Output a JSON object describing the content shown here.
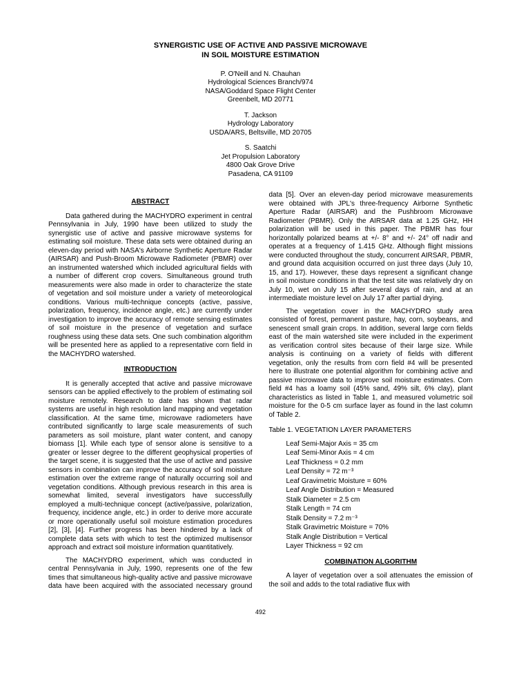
{
  "title_line1": "SYNERGISTIC USE OF ACTIVE AND PASSIVE MICROWAVE",
  "title_line2": "IN SOIL MOISTURE ESTIMATION",
  "author_block1": "P. O'Neill and N. Chauhan\nHydrological Sciences Branch/974\nNASA/Goddard Space Flight Center\nGreenbelt, MD  20771",
  "author_block2": "T. Jackson\nHydrology Laboratory\nUSDA/ARS, Beltsville, MD  20705",
  "author_block3": "S. Saatchi\nJet Propulsion Laboratory\n4800 Oak Grove Drive\nPasadena, CA  91109",
  "section_abstract": "ABSTRACT",
  "abstract_p1": "Data gathered during the MACHYDRO experiment in central Pennsylvania in July, 1990 have been utilized to study the synergistic use of active and passive microwave systems for estimating soil moisture. These data sets were obtained during an eleven-day period with NASA's Airborne Synthetic Aperture Radar (AIRSAR) and Push-Broom Microwave Radiometer (PBMR) over an instrumented watershed which included agricultural fields with a number of different crop covers. Simultaneous ground truth measurements were also made in order to characterize the state of vegetation and soil moisture under a variety of meteorological conditions. Various multi-technique concepts (active, passive, polarization, frequency, incidence angle, etc.) are currently under investigation to improve the accuracy of remote sensing estimates of soil moisture in the presence of vegetation and surface roughness using these data sets. One such combination algorithm will be presented here as applied to a representative corn field in the MACHYDRO watershed.",
  "section_intro": "INTRODUCTION",
  "intro_p1": "It is generally accepted that active and passive microwave sensors can be applied effectively to the problem of estimating soil moisture remotely. Research to date has shown that radar systems are useful in high resolution land mapping and vegetation classification. At the same time, microwave radiometers have contributed significantly to large scale measurements of such parameters as soil moisture, plant water content, and canopy biomass [1]. While each type of sensor alone is sensitive to a greater or lesser degree to the different geophysical properties of the target scene, it is suggested that the use of active and passive sensors in combination can improve the accuracy of soil moisture estimation over the extreme range of naturally occurring soil and vegetation conditions. Although previous research in this area is somewhat limited, several investigators have successfully employed a multi-technique concept (active/passive, polarization, frequency, incidence angle, etc.) in order to derive more accurate or more operationally useful soil moisture estimation procedures [2], [3], [4]. Further progress has been hindered by a lack of complete data sets with which to test the optimized multisensor approach and extract soil moisture information quantitatively.",
  "intro_p2": "The MACHYDRO experiment, which was conducted in central Pennsylvania in July, 1990, represents one of the few times that simultaneous high-quality active and passive microwave data have been acquired with the associated necessary ground data [5]. Over an eleven-day period microwave measurements were obtained with JPL's three-frequency Airborne Synthetic Aperture Radar (AIRSAR) and the Pushbroom Microwave Radiometer (PBMR). Only the AIRSAR data at 1.25 GHz, HH polarization will be used in this paper. The PBMR has four horizontally polarized beams at +/- 8° and +/- 24° off nadir and operates at a frequency of 1.415 GHz. Although flight missions were conducted throughout the study, concurrent AIRSAR, PBMR, and ground data acquisition occurred on just three days (July 10, 15, and 17). However, these days represent a significant change in soil moisture conditions in that the test site was relatively dry on July 10, wet on July 15 after several days of rain, and at an intermediate moisture level on July 17 after partial drying.",
  "intro_p3": "The vegetation cover in the MACHYDRO study area consisted of forest, permanent pasture, hay, corn, soybeans, and senescent small grain crops. In addition, several large corn fields east of the main watershed site were included in the experiment as verification control sites because of their large size. While analysis is continuing on a variety of fields with different vegetation, only the results from corn field #4 will be presented here to illustrate one potential algorithm for combining active and passive microwave data to improve soil moisture estimates. Corn field #4 has a loamy soil (45% sand, 49% silt, 6% clay), plant characteristics as listed in Table 1, and measured volumetric soil moisture for the 0-5 cm surface layer as found in the last column of Table 2.",
  "table1_title": "Table 1.      VEGETATION LAYER PARAMETERS",
  "table1": [
    "Leaf Semi-Major Axis = 35 cm",
    "Leaf Semi-Minor Axis = 4 cm",
    "Leaf Thickness = 0.2 mm",
    "Leaf Density = 72 m⁻³",
    "Leaf Gravimetric Moisture = 60%",
    "Leaf Angle Distribution = Measured",
    "Stalk Diameter = 2.5 cm",
    "Stalk Length = 74 cm",
    "Stalk Density = 7.2 m⁻³",
    "Stalk Gravimetric Moisture = 70%",
    "Stalk Angle Distribution = Vertical",
    "Layer Thickness = 92 cm"
  ],
  "section_combo": "COMBINATION ALGORITHM",
  "combo_p1": "A layer of vegetation over a soil attenuates the emission of the soil and adds to the total radiative flux with",
  "page_number": "492"
}
